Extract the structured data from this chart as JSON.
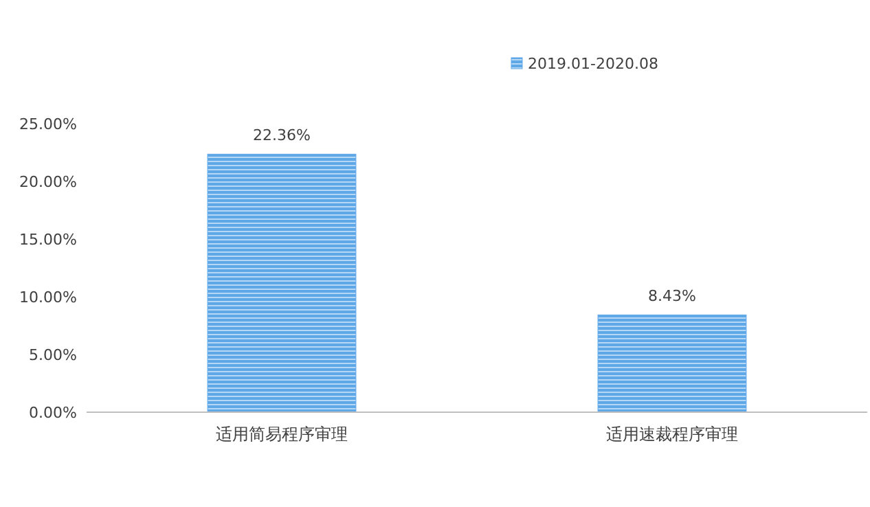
{
  "chart_data": {
    "type": "bar",
    "categories": [
      "适用简易程序审理",
      "适用速裁程序审理"
    ],
    "series": [
      {
        "name": "2019.01-2020.08",
        "color": "#5fa8e8",
        "values": [
          22.36,
          8.43
        ],
        "value_labels": [
          "22.36%",
          "8.43%"
        ]
      }
    ],
    "ylim": [
      0,
      25
    ],
    "yticks": [
      {
        "value": 0,
        "label": "0.00%"
      },
      {
        "value": 5,
        "label": "5.00%"
      },
      {
        "value": 10,
        "label": "10.00%"
      },
      {
        "value": 15,
        "label": "15.00%"
      },
      {
        "value": 20,
        "label": "20.00%"
      },
      {
        "value": 25,
        "label": "25.00%"
      }
    ],
    "grid": false,
    "legend": "top"
  }
}
